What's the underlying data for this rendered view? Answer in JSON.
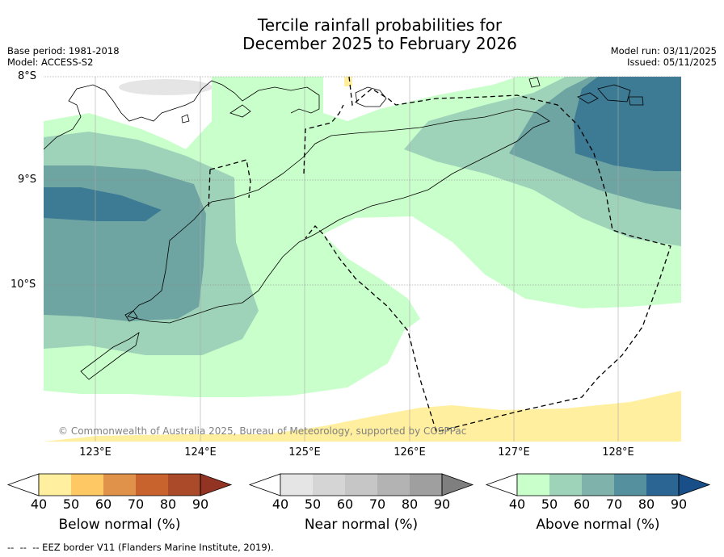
{
  "title": {
    "line1": "Tercile rainfall probabilities for",
    "line2": "December 2025 to February 2026"
  },
  "meta": {
    "base_period": "Base period: 1981-2018",
    "model": "Model: ACCESS-S2",
    "model_run": "Model run: 03/11/2025",
    "issued": "Issued: 05/11/2025"
  },
  "map": {
    "lat_labels": [
      "8°S",
      "9°S",
      "10°S"
    ],
    "lon_labels": [
      "123°E",
      "124°E",
      "125°E",
      "126°E",
      "127°E",
      "128°E"
    ],
    "copyright": "© Commonwealth of Australia 2025, Bureau of Meteorology, supported by COSPPac"
  },
  "colorbars": [
    {
      "name": "Below normal (%)",
      "ticks": [
        "40",
        "50",
        "60",
        "70",
        "80",
        "90"
      ],
      "colors": [
        "#ffffff",
        "#ffef9e",
        "#fec964",
        "#e0924b",
        "#c9632e",
        "#ab4a28",
        "#923324"
      ]
    },
    {
      "name": "Near normal (%)",
      "ticks": [
        "40",
        "50",
        "60",
        "70",
        "80",
        "90"
      ],
      "colors": [
        "#ffffff",
        "#e5e5e5",
        "#d5d5d5",
        "#c6c6c6",
        "#b3b3b3",
        "#9f9f9f",
        "#7f7f7f"
      ]
    },
    {
      "name": "Above normal (%)",
      "ticks": [
        "40",
        "50",
        "60",
        "70",
        "80",
        "90"
      ],
      "colors": [
        "#ffffff",
        "#c9ffcb",
        "#9fd3b9",
        "#7fb2aa",
        "#55909f",
        "#2b6593",
        "#184f88"
      ]
    }
  ],
  "footer": "--  --  -- EEZ border V11 (Flanders Marine Institute, 2019)."
}
